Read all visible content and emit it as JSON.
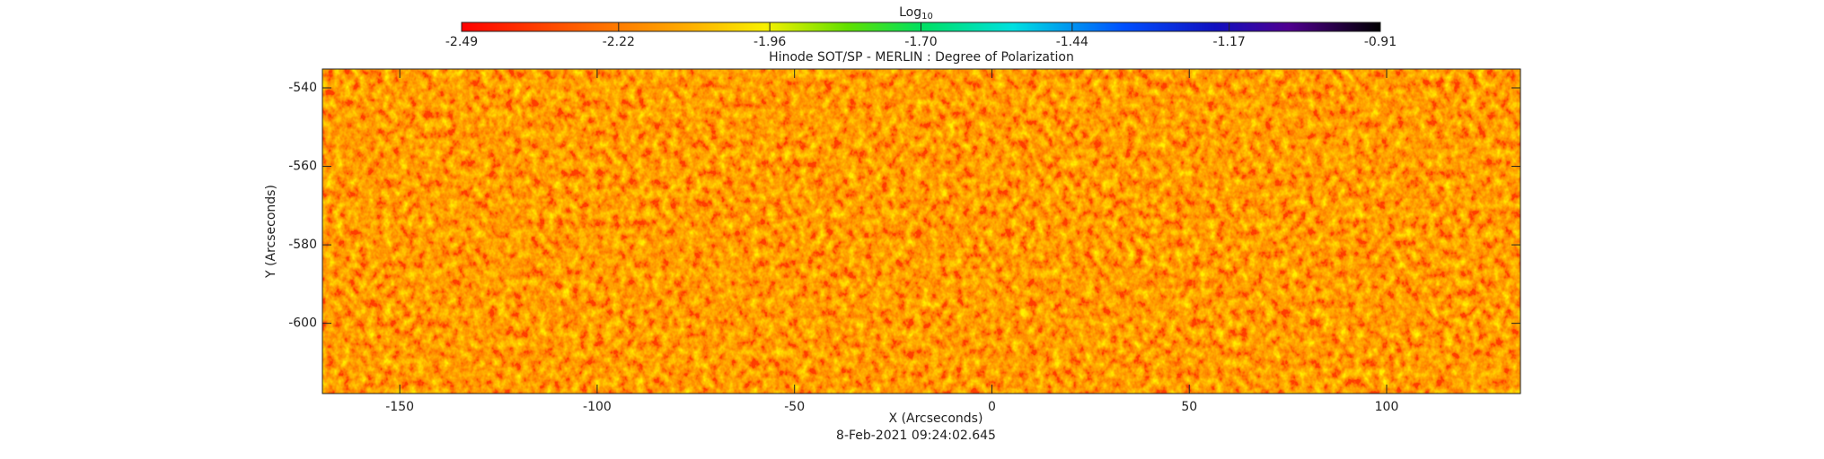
{
  "chart_data": {
    "type": "heatmap",
    "title": "Hinode SOT/SP - MERLIN : Degree of Polarization",
    "colorbar_label": "Log",
    "colorbar_label_subscript": "10",
    "zlim": [
      -2.49,
      -0.91
    ],
    "zticks": [
      -2.49,
      -2.22,
      -1.96,
      {
        "value": -1.7,
        "label": "-1.70"
      },
      -1.44,
      -1.17,
      -0.91
    ],
    "x_label": "X (Arcseconds)",
    "y_label": "Y (Arcseconds)",
    "xlim": [
      -169.6,
      133.9
    ],
    "ylim": [
      -617.9,
      -535.2
    ],
    "xticks": [
      -150,
      -100,
      -50,
      0,
      50,
      100
    ],
    "yticks": [
      -540,
      -560,
      -580,
      -600
    ],
    "timestamp": "8-Feb-2021 09:24:02.645"
  }
}
